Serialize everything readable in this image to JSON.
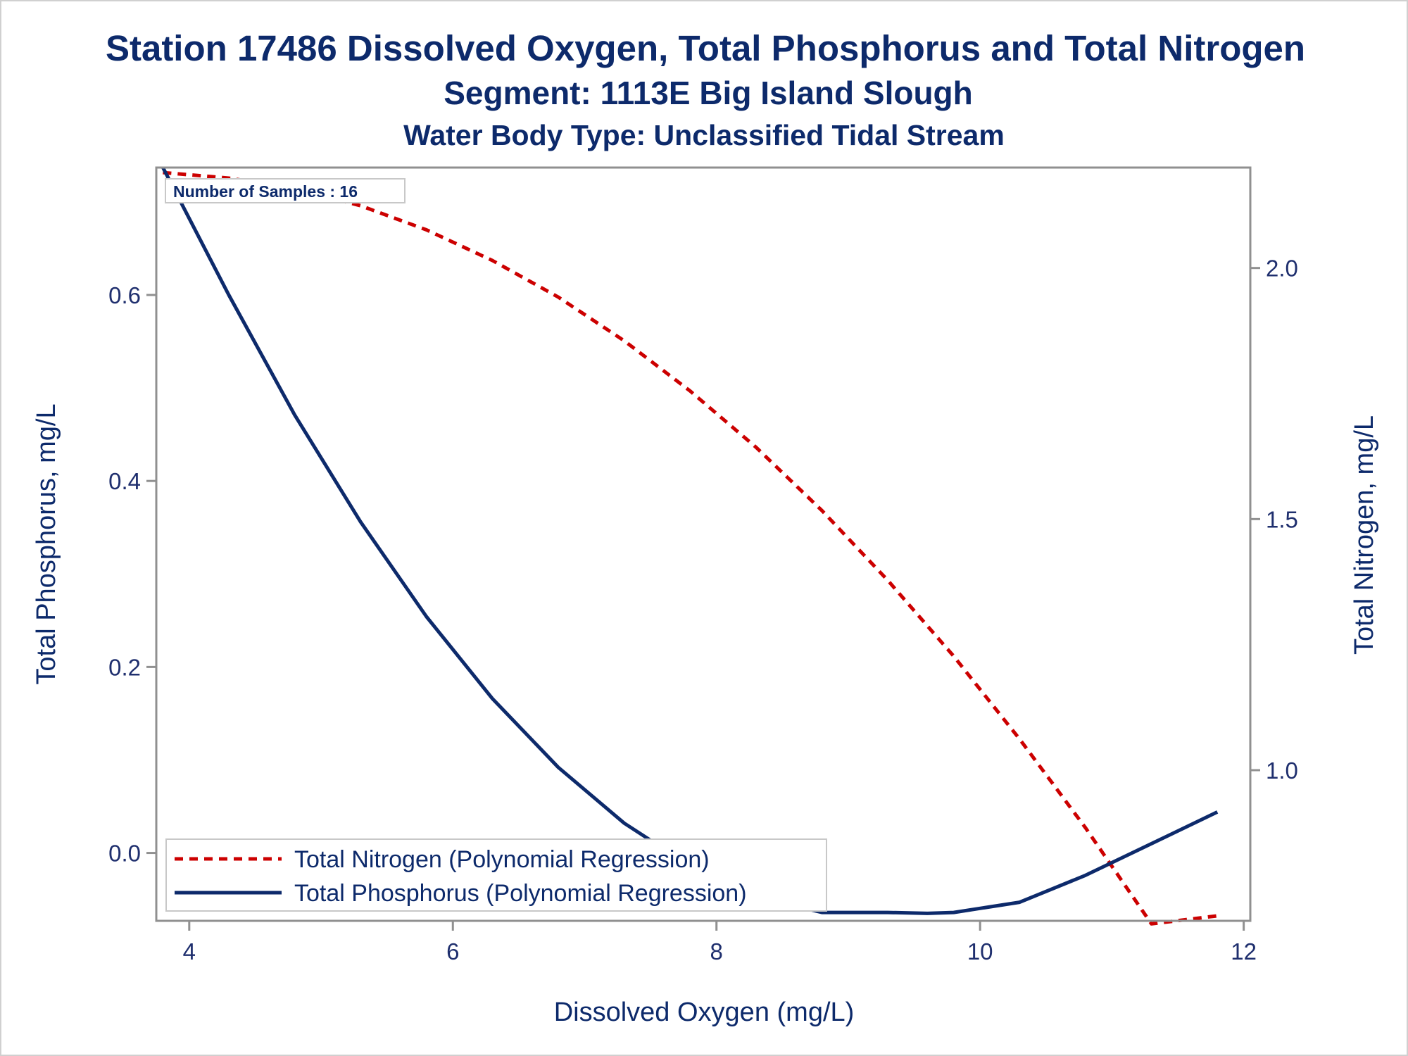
{
  "title": "Station 17486  Dissolved Oxygen, Total Phosphorus and Total Nitrogen",
  "subtitle": "Segment: 1113E  Big Island Slough",
  "subtitle2": "Water Body Type: Unclassified Tidal Stream",
  "note": "Number of Samples : 16",
  "colors": {
    "text": "#0d2a6b",
    "phosphorus": "#0d2a6b",
    "nitrogen": "#cc0000",
    "frame": "#909090"
  },
  "chart_data": {
    "type": "line",
    "xlabel": "Dissolved Oxygen (mg/L)",
    "ylabel": "Total Phosphorus, mg/L",
    "y2label": "Total Nitrogen, mg/L",
    "xlim": [
      3.75,
      12.05
    ],
    "ylim": [
      -0.073,
      0.737
    ],
    "y2lim": [
      0.7,
      2.2
    ],
    "xticks": [
      4,
      6,
      8,
      10,
      12
    ],
    "yticks": [
      0.0,
      0.2,
      0.4,
      0.6
    ],
    "yticklabels": [
      "0.0",
      "0.2",
      "0.4",
      "0.6"
    ],
    "y2ticks": [
      1.0,
      1.5,
      2.0
    ],
    "y2ticklabels": [
      "1.0",
      "1.5",
      "2.0"
    ],
    "xticklabels": [
      "4",
      "6",
      "8",
      "10",
      "12"
    ],
    "legend_position": "bottom-left",
    "series": [
      {
        "name": "Total Nitrogen (Polynomial Regression)",
        "axis": "right",
        "style": "dashed",
        "x": [
          3.8,
          4.3,
          4.8,
          5.3,
          5.8,
          6.3,
          6.8,
          7.3,
          7.8,
          8.3,
          8.8,
          9.3,
          9.8,
          10.3,
          10.8,
          11.3,
          11.8
        ],
        "y": [
          2.19,
          2.179,
          2.158,
          2.124,
          2.076,
          2.015,
          1.942,
          1.855,
          1.755,
          1.643,
          1.517,
          1.378,
          1.227,
          1.062,
          0.885,
          0.694,
          0.71
        ]
      },
      {
        "name": "Total Phosphorus (Polynomial Regression)",
        "axis": "left",
        "style": "solid",
        "x": [
          3.8,
          4.3,
          4.8,
          5.3,
          5.8,
          6.3,
          6.8,
          7.3,
          7.8,
          8.3,
          8.8,
          9.3,
          9.6,
          9.8,
          10.3,
          10.8,
          11.3,
          11.8
        ],
        "y": [
          0.737,
          0.6,
          0.471,
          0.356,
          0.254,
          0.166,
          0.092,
          0.032,
          -0.014,
          -0.047,
          -0.064,
          -0.064,
          -0.065,
          -0.064,
          -0.053,
          -0.024,
          0.01,
          0.044
        ]
      }
    ]
  }
}
